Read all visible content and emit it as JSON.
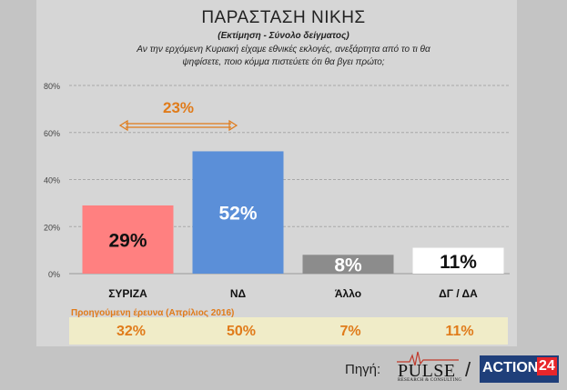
{
  "header": {
    "title": "ΠΑΡΑΣΤΑΣΗ ΝΙΚΗΣ",
    "subtitle": "(Εκτίμηση - Σύνολο δείγματος)",
    "question_line1": "Αν την ερχόμενη Κυριακή είχαμε εθνικές εκλογές, ανεξάρτητα από το τι θα",
    "question_line2": "ψηφίσετε, ποιο κόμμα πιστεύετε ότι θα βγει πρώτο;"
  },
  "chart_data": {
    "type": "bar",
    "categories": [
      "ΣΥΡΙΖΑ",
      "ΝΔ",
      "Άλλο",
      "ΔΓ / ΔΑ"
    ],
    "values": [
      29,
      52,
      8,
      11
    ],
    "value_labels": [
      "29%",
      "52%",
      "8%",
      "11%"
    ],
    "colors": [
      "#ff8080",
      "#5b8fd8",
      "#8c8c8c",
      "#ffffff"
    ],
    "label_colors": [
      "#111111",
      "#ffffff",
      "#ffffff",
      "#111111"
    ],
    "yticks": [
      "0%",
      "20%",
      "40%",
      "60%",
      "80%"
    ],
    "ytick_values": [
      0,
      20,
      40,
      60,
      80
    ],
    "ylim": [
      0,
      80
    ],
    "gap_annotation": "23%",
    "gap_color": "#e07b1a",
    "grid": true
  },
  "previous": {
    "label": "Προηγούμενη έρευνα (Απρίλιος 2016)",
    "values": [
      "32%",
      "50%",
      "7%",
      "11%"
    ]
  },
  "footer": {
    "source_label": "Πηγή:",
    "logo1": "PULSE",
    "logo1_sub": "RESEARCH & CONSULTING",
    "slash": "/",
    "logo2_text": "ACTION",
    "logo2_num": "24"
  }
}
